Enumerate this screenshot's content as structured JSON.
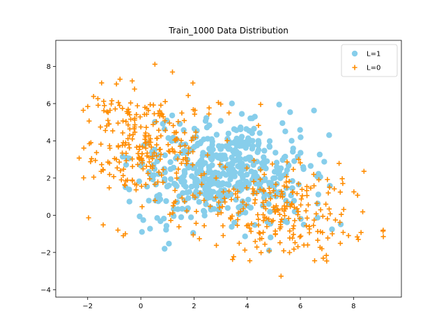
{
  "chart_data": {
    "type": "scatter",
    "title": "Train_1000 Data Distribution",
    "xlabel": "",
    "ylabel": "",
    "xlim": [
      -3.2,
      9.8
    ],
    "ylim": [
      -4.4,
      9.4
    ],
    "x_ticks": [
      -2,
      0,
      2,
      4,
      6,
      8
    ],
    "y_ticks": [
      -4,
      -2,
      0,
      2,
      4,
      6,
      8
    ],
    "legend_position": "top-right",
    "grid": false,
    "series": [
      {
        "name": "L=1",
        "marker": "circle",
        "color": "#87ceeb",
        "clusters": [
          {
            "cx": 3.0,
            "cy": 2.6,
            "sx": 1.3,
            "sy": 1.25,
            "n": 360
          },
          {
            "cx": 1.0,
            "cy": 1.5,
            "sx": 1.0,
            "sy": 1.5,
            "n": 60
          },
          {
            "cx": 5.0,
            "cy": 1.8,
            "sx": 1.0,
            "sy": 1.4,
            "n": 80
          }
        ]
      },
      {
        "name": "L=0",
        "marker": "plus",
        "color": "#ff8c00",
        "clusters": [
          {
            "cx": 0.0,
            "cy": 4.0,
            "sx": 1.2,
            "sy": 1.5,
            "n": 240
          },
          {
            "cx": 5.5,
            "cy": 0.0,
            "sx": 1.5,
            "sy": 1.2,
            "n": 200
          },
          {
            "cx": 2.5,
            "cy": 1.5,
            "sx": 1.8,
            "sy": 2.0,
            "n": 60
          }
        ]
      }
    ],
    "annotations": []
  }
}
